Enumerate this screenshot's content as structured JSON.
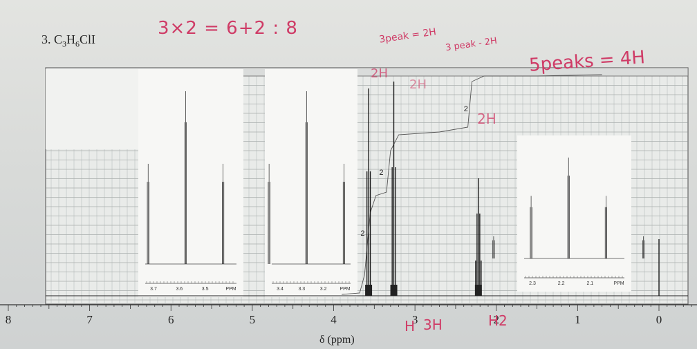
{
  "problem": {
    "number": "3.",
    "formula_parts": [
      "C",
      "3",
      "H",
      "6",
      "ClI"
    ]
  },
  "annotations": {
    "calc": "3×2 = 6+2 : 8",
    "note1": "3peak = 2H",
    "note2": "3 peak - 2H",
    "note3": "5peaks = 4H",
    "h2a": "2H",
    "h2b": "2H",
    "h2c": "2H",
    "h_label1": "H",
    "h_label2": "3H",
    "h_label3": "H2"
  },
  "chart_data": {
    "type": "line",
    "title": "",
    "xlabel": "δ (ppm)",
    "ylabel": "",
    "xlim": [
      8,
      -0.2
    ],
    "x_ticks": [
      "8",
      "7",
      "6",
      "5",
      "4",
      "3",
      "2",
      "1",
      "0"
    ],
    "grid": true,
    "peaks": [
      {
        "shift": 3.57,
        "multiplicity": "triplet",
        "integration": "2"
      },
      {
        "shift": 3.26,
        "multiplicity": "triplet",
        "integration": "2"
      },
      {
        "shift": 2.22,
        "multiplicity": "quintet",
        "integration": "2"
      },
      {
        "shift": 0.0,
        "multiplicity": "singlet",
        "integration": ""
      }
    ],
    "integration_labels": [
      "2",
      "2",
      "2"
    ],
    "insets": [
      {
        "ticks": [
          "3.7",
          "3.6",
          "3.5",
          "PPM"
        ],
        "center": 3.57,
        "multiplicity": "triplet"
      },
      {
        "ticks": [
          "3.4",
          "3.3",
          "3.2",
          "PPM"
        ],
        "center": 3.26,
        "multiplicity": "triplet"
      },
      {
        "ticks": [
          "2.3",
          "2.2",
          "2.1",
          "PPM"
        ],
        "center": 2.22,
        "multiplicity": "quintet"
      }
    ]
  }
}
